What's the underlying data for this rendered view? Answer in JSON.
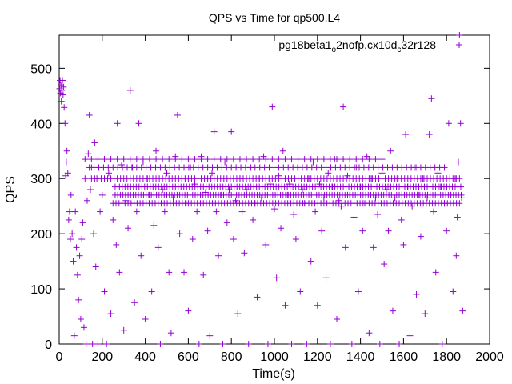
{
  "chart_data": {
    "type": "scatter",
    "title": "QPS vs Time for qp500.L4",
    "xlabel": "Time(s)",
    "ylabel": "QPS",
    "xlim": [
      0,
      2000
    ],
    "ylim": [
      0,
      560
    ],
    "xticks": [
      0,
      200,
      400,
      600,
      800,
      1000,
      1200,
      1400,
      1600,
      1800,
      2000
    ],
    "yticks": [
      0,
      100,
      200,
      300,
      400,
      500
    ],
    "grid": false,
    "legend_position": "top-right",
    "marker": "plus",
    "color": "#9400d3",
    "series": [
      {
        "name": "pg18beta1_o2nofp.cx10d_c32r128",
        "legend_parts": {
          "a": "pg18beta1",
          "a_sub": "o",
          "b": "2nofp.cx10d",
          "b_sub": "c",
          "c": "32r128"
        },
        "points": [
          [
            2,
            463
          ],
          [
            4,
            478
          ],
          [
            6,
            455
          ],
          [
            8,
            470
          ],
          [
            10,
            440
          ],
          [
            12,
            460
          ],
          [
            15,
            478
          ],
          [
            18,
            452
          ],
          [
            20,
            466
          ],
          [
            23,
            429
          ],
          [
            27,
            400
          ],
          [
            30,
            305
          ],
          [
            33,
            330
          ],
          [
            36,
            350
          ],
          [
            40,
            310
          ],
          [
            44,
            225
          ],
          [
            48,
            240
          ],
          [
            52,
            190
          ],
          [
            55,
            270
          ],
          [
            60,
            200
          ],
          [
            65,
            150
          ],
          [
            70,
            15
          ],
          [
            75,
            240
          ],
          [
            80,
            175
          ],
          [
            85,
            125
          ],
          [
            90,
            80
          ],
          [
            95,
            160
          ],
          [
            100,
            45
          ],
          [
            105,
            190
          ],
          [
            110,
            220
          ],
          [
            115,
            30
          ],
          [
            120,
            300
          ],
          [
            125,
            0
          ],
          [
            130,
            260
          ],
          [
            135,
            345
          ],
          [
            140,
            415
          ],
          [
            145,
            280
          ],
          [
            150,
            320
          ],
          [
            155,
            0
          ],
          [
            160,
            200
          ],
          [
            165,
            365
          ],
          [
            170,
            140
          ],
          [
            175,
            300
          ],
          [
            180,
            0
          ],
          [
            190,
            240
          ],
          [
            200,
            270
          ],
          [
            210,
            95
          ],
          [
            220,
            0
          ],
          [
            230,
            310
          ],
          [
            240,
            55
          ],
          [
            250,
            225
          ],
          [
            260,
            285
          ],
          [
            265,
            180
          ],
          [
            270,
            400
          ],
          [
            280,
            130
          ],
          [
            290,
            325
          ],
          [
            300,
            25
          ],
          [
            310,
            260
          ],
          [
            320,
            210
          ],
          [
            330,
            460
          ],
          [
            340,
            320
          ],
          [
            350,
            75
          ],
          [
            360,
            240
          ],
          [
            370,
            400
          ],
          [
            380,
            160
          ],
          [
            390,
            330
          ],
          [
            400,
            45
          ],
          [
            410,
            300
          ],
          [
            420,
            270
          ],
          [
            430,
            95
          ],
          [
            440,
            215
          ],
          [
            450,
            350
          ],
          [
            460,
            175
          ],
          [
            470,
            0
          ],
          [
            480,
            280
          ],
          [
            490,
            240
          ],
          [
            500,
            310
          ],
          [
            510,
            130
          ],
          [
            520,
            20
          ],
          [
            530,
            265
          ],
          [
            540,
            340
          ],
          [
            550,
            415
          ],
          [
            560,
            200
          ],
          [
            570,
            300
          ],
          [
            580,
            130
          ],
          [
            590,
            255
          ],
          [
            600,
            60
          ],
          [
            610,
            320
          ],
          [
            620,
            190
          ],
          [
            630,
            290
          ],
          [
            640,
            240
          ],
          [
            650,
            0
          ],
          [
            660,
            340
          ],
          [
            670,
            125
          ],
          [
            680,
            275
          ],
          [
            690,
            205
          ],
          [
            700,
            15
          ],
          [
            710,
            310
          ],
          [
            720,
            385
          ],
          [
            730,
            240
          ],
          [
            740,
            160
          ],
          [
            750,
            270
          ],
          [
            760,
            0
          ],
          [
            770,
            330
          ],
          [
            780,
            220
          ],
          [
            790,
            280
          ],
          [
            800,
            385
          ],
          [
            810,
            190
          ],
          [
            820,
            260
          ],
          [
            830,
            55
          ],
          [
            840,
            300
          ],
          [
            850,
            240
          ],
          [
            860,
            165
          ],
          [
            870,
            280
          ],
          [
            880,
            0
          ],
          [
            890,
            320
          ],
          [
            900,
            225
          ],
          [
            910,
            255
          ],
          [
            920,
            85
          ],
          [
            930,
            300
          ],
          [
            940,
            265
          ],
          [
            950,
            340
          ],
          [
            960,
            180
          ],
          [
            970,
            0
          ],
          [
            980,
            290
          ],
          [
            990,
            430
          ],
          [
            1000,
            245
          ],
          [
            1010,
            120
          ],
          [
            1020,
            305
          ],
          [
            1030,
            210
          ],
          [
            1040,
            350
          ],
          [
            1050,
            70
          ],
          [
            1060,
            270
          ],
          [
            1070,
            290
          ],
          [
            1080,
            0
          ],
          [
            1090,
            235
          ],
          [
            1100,
            190
          ],
          [
            1110,
            320
          ],
          [
            1120,
            95
          ],
          [
            1130,
            280
          ],
          [
            1140,
            255
          ],
          [
            1150,
            0
          ],
          [
            1160,
            300
          ],
          [
            1170,
            150
          ],
          [
            1180,
            330
          ],
          [
            1190,
            240
          ],
          [
            1200,
            70
          ],
          [
            1210,
            290
          ],
          [
            1220,
            205
          ],
          [
            1230,
            265
          ],
          [
            1240,
            120
          ],
          [
            1250,
            310
          ],
          [
            1260,
            0
          ],
          [
            1270,
            285
          ],
          [
            1280,
            335
          ],
          [
            1290,
            45
          ],
          [
            1300,
            260
          ],
          [
            1310,
            250
          ],
          [
            1320,
            430
          ],
          [
            1330,
            175
          ],
          [
            1340,
            305
          ],
          [
            1350,
            270
          ],
          [
            1360,
            0
          ],
          [
            1370,
            230
          ],
          [
            1380,
            320
          ],
          [
            1390,
            95
          ],
          [
            1400,
            285
          ],
          [
            1410,
            205
          ],
          [
            1420,
            255
          ],
          [
            1430,
            340
          ],
          [
            1440,
            20
          ],
          [
            1450,
            300
          ],
          [
            1460,
            175
          ],
          [
            1470,
            265
          ],
          [
            1480,
            235
          ],
          [
            1490,
            0
          ],
          [
            1500,
            310
          ],
          [
            1510,
            145
          ],
          [
            1520,
            280
          ],
          [
            1530,
            205
          ],
          [
            1540,
            350
          ],
          [
            1550,
            60
          ],
          [
            1560,
            265
          ],
          [
            1570,
            300
          ],
          [
            1580,
            0
          ],
          [
            1590,
            225
          ],
          [
            1600,
            180
          ],
          [
            1610,
            380
          ],
          [
            1620,
            285
          ],
          [
            1630,
            15
          ],
          [
            1640,
            250
          ],
          [
            1650,
            320
          ],
          [
            1660,
            90
          ],
          [
            1670,
            270
          ],
          [
            1680,
            195
          ],
          [
            1690,
            300
          ],
          [
            1700,
            55
          ],
          [
            1710,
            265
          ],
          [
            1720,
            380
          ],
          [
            1730,
            445
          ],
          [
            1740,
            240
          ],
          [
            1750,
            130
          ],
          [
            1760,
            310
          ],
          [
            1770,
            285
          ],
          [
            1780,
            0
          ],
          [
            1790,
            255
          ],
          [
            1800,
            205
          ],
          [
            1810,
            400
          ],
          [
            1820,
            270
          ],
          [
            1830,
            95
          ],
          [
            1840,
            300
          ],
          [
            1845,
            160
          ],
          [
            1850,
            230
          ],
          [
            1855,
            330
          ],
          [
            1860,
            560
          ],
          [
            1865,
            400
          ],
          [
            1870,
            265
          ],
          [
            1875,
            60
          ]
        ]
      }
    ],
    "bands": [
      {
        "y": 255,
        "x_start": 250,
        "x_end": 1870,
        "step": 14
      },
      {
        "y": 270,
        "x_start": 260,
        "x_end": 1870,
        "step": 12
      },
      {
        "y": 285,
        "x_start": 280,
        "x_end": 1870,
        "step": 13
      },
      {
        "y": 300,
        "x_start": 150,
        "x_end": 1870,
        "step": 15
      },
      {
        "y": 320,
        "x_start": 140,
        "x_end": 1800,
        "step": 22
      },
      {
        "y": 335,
        "x_start": 120,
        "x_end": 1500,
        "step": 30
      }
    ]
  }
}
